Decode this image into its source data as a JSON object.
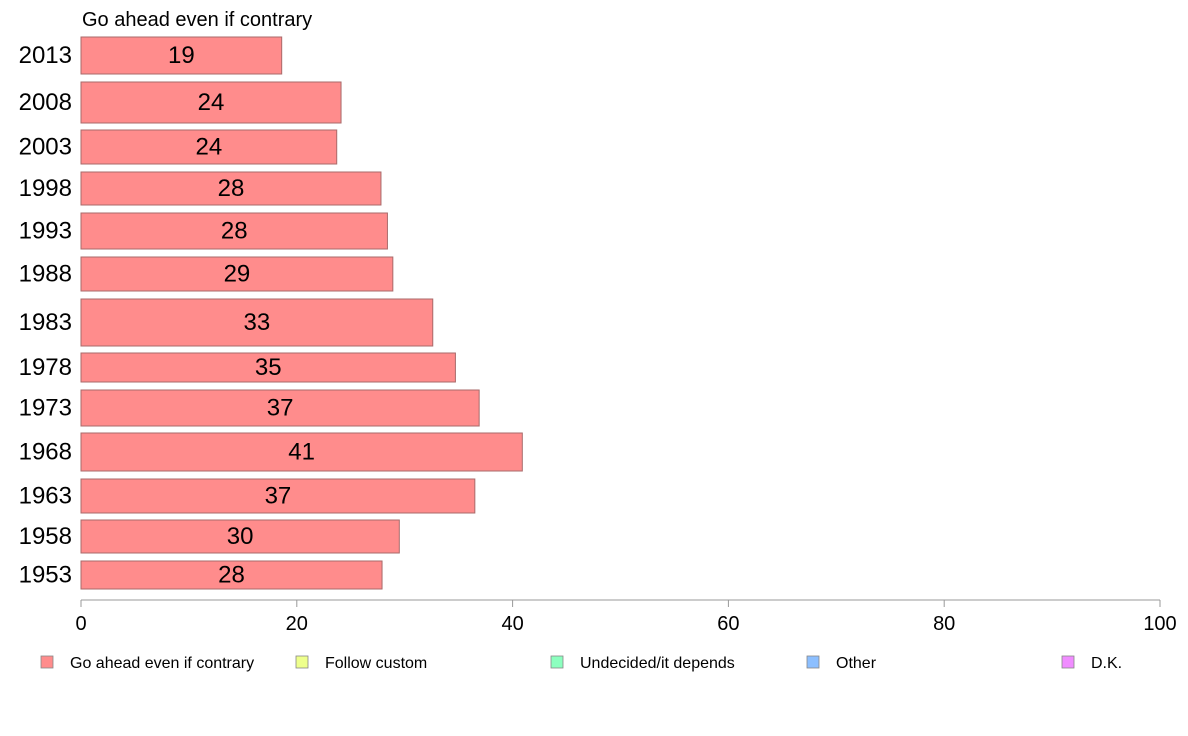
{
  "chart_data": {
    "type": "bar",
    "orientation": "horizontal",
    "title": "Go ahead even if contrary",
    "categories": [
      "2013",
      "2008",
      "2003",
      "1998",
      "1993",
      "1988",
      "1983",
      "1978",
      "1973",
      "1968",
      "1963",
      "1958",
      "1953"
    ],
    "values": [
      18.6,
      24.1,
      23.7,
      27.8,
      28.4,
      28.9,
      32.6,
      34.7,
      36.9,
      40.9,
      36.5,
      29.5,
      27.9
    ],
    "data_labels": [
      "19",
      "24",
      "24",
      "28",
      "28",
      "29",
      "33",
      "35",
      "37",
      "41",
      "37",
      "30",
      "28"
    ],
    "xlim": [
      0,
      100
    ],
    "xticks": [
      0,
      20,
      40,
      60,
      80,
      100
    ],
    "grid": false,
    "legend_position": "bottom",
    "legend": [
      {
        "label": "Go ahead even if contrary",
        "color": "#ff8c8c"
      },
      {
        "label": "Follow custom",
        "color": "#eeff8c"
      },
      {
        "label": "Undecided/it depends",
        "color": "#8cffbf"
      },
      {
        "label": "Other",
        "color": "#8cbfff"
      },
      {
        "label": "D.K.",
        "color": "#f08cff"
      }
    ],
    "bar_color": "#ff8c8c"
  }
}
